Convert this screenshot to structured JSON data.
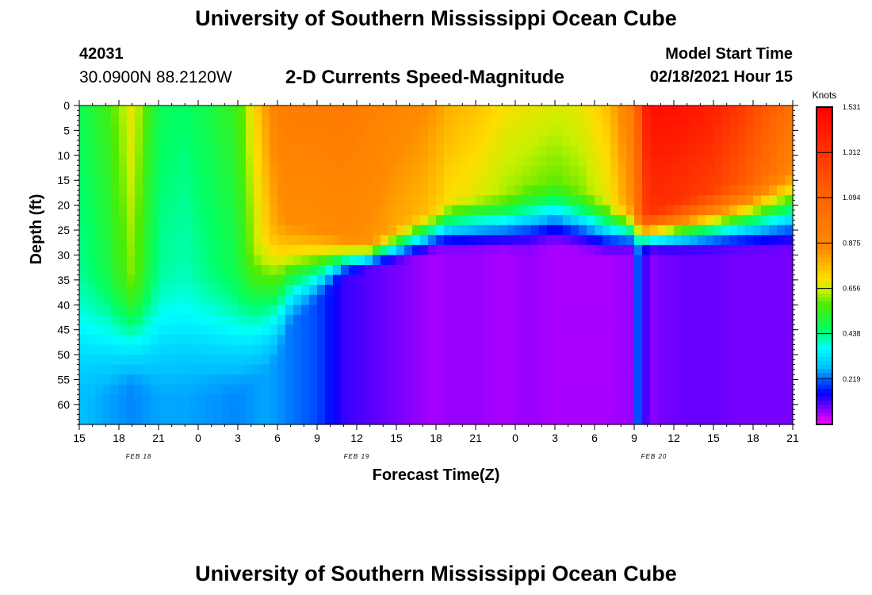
{
  "header": {
    "title": "University of Southern Mississippi Ocean Cube",
    "station_id": "42031",
    "coordinates": "30.0900N 88.2120W",
    "subtitle": "2-D Currents Speed-Magnitude",
    "model_label": "Model Start Time",
    "model_time": "02/18/2021 Hour 15"
  },
  "footer": {
    "title": "University of Southern Mississippi Ocean Cube"
  },
  "chart_data": {
    "type": "heatmap",
    "title": "2-D Currents Speed-Magnitude",
    "xlabel": "Forecast Time(Z)",
    "ylabel": "Depth (ft)",
    "x_ticks": [
      "15",
      "18",
      "21",
      "0",
      "3",
      "6",
      "9",
      "12",
      "15",
      "18",
      "21",
      "0",
      "3",
      "6",
      "9",
      "12",
      "15",
      "18",
      "21"
    ],
    "x_hours": [
      0,
      3,
      6,
      9,
      12,
      15,
      18,
      21,
      24,
      27,
      30,
      33,
      36,
      39,
      42,
      45,
      48,
      51,
      54
    ],
    "xlim": [
      0,
      54
    ],
    "date_labels": [
      {
        "text": "FEB 18",
        "hour": 4.5
      },
      {
        "text": "FEB 19",
        "hour": 21
      },
      {
        "text": "FEB 20",
        "hour": 43.5
      }
    ],
    "y_ticks": [
      "0",
      "5",
      "10",
      "15",
      "20",
      "25",
      "30",
      "35",
      "40",
      "45",
      "50",
      "55",
      "60"
    ],
    "y_values": [
      0,
      5,
      10,
      15,
      20,
      25,
      30,
      35,
      40,
      45,
      50,
      55,
      60
    ],
    "ylim": [
      0,
      64
    ],
    "colorbar": {
      "title": "Knots",
      "tick_labels": [
        "1.531",
        "1.312",
        "1.094",
        "0.875",
        "0.656",
        "0.438",
        "0.219"
      ],
      "tick_values": [
        1.531,
        1.312,
        1.094,
        0.875,
        0.656,
        0.438,
        0.219
      ],
      "range": [
        0,
        1.531
      ]
    },
    "speed_profile": {
      "hours": [
        0,
        2,
        4,
        6,
        8,
        10,
        12,
        14,
        15,
        16,
        18,
        20,
        22,
        24,
        26,
        27,
        28,
        30,
        32,
        34,
        36,
        38,
        40,
        42,
        42.5,
        43,
        44,
        46,
        48,
        50,
        52,
        54
      ],
      "surface": [
        0.48,
        0.55,
        0.68,
        0.48,
        0.46,
        0.5,
        0.55,
        0.8,
        0.92,
        0.94,
        0.94,
        0.95,
        0.92,
        0.88,
        0.85,
        0.82,
        0.78,
        0.75,
        0.7,
        0.68,
        0.66,
        0.68,
        0.75,
        0.95,
        1.25,
        1.45,
        1.48,
        1.45,
        1.4,
        1.3,
        1.15,
        1.0
      ],
      "upper_depth_ft": [
        30,
        30,
        32,
        30,
        30,
        30,
        30,
        22,
        20,
        22,
        24,
        26,
        27,
        24,
        21,
        20,
        18,
        17,
        17,
        15,
        14,
        16,
        18,
        20,
        21,
        21,
        20,
        18,
        16,
        14,
        12,
        10
      ],
      "deep": [
        0.28,
        0.26,
        0.24,
        0.26,
        0.26,
        0.25,
        0.24,
        0.26,
        0.25,
        0.23,
        0.2,
        0.12,
        0.1,
        0.08,
        0.06,
        0.05,
        0.06,
        0.06,
        0.05,
        0.06,
        0.05,
        0.05,
        0.05,
        0.06,
        0.3,
        0.06,
        0.08,
        0.09,
        0.09,
        0.08,
        0.08,
        0.08
      ],
      "deep_depth_ft": [
        60,
        60,
        58,
        60,
        60,
        60,
        60,
        55,
        52,
        45,
        40,
        35,
        33,
        32,
        31,
        30,
        30,
        30,
        30,
        30,
        29,
        30,
        31,
        30,
        30,
        30,
        30,
        30,
        30,
        30,
        30,
        30
      ]
    }
  }
}
